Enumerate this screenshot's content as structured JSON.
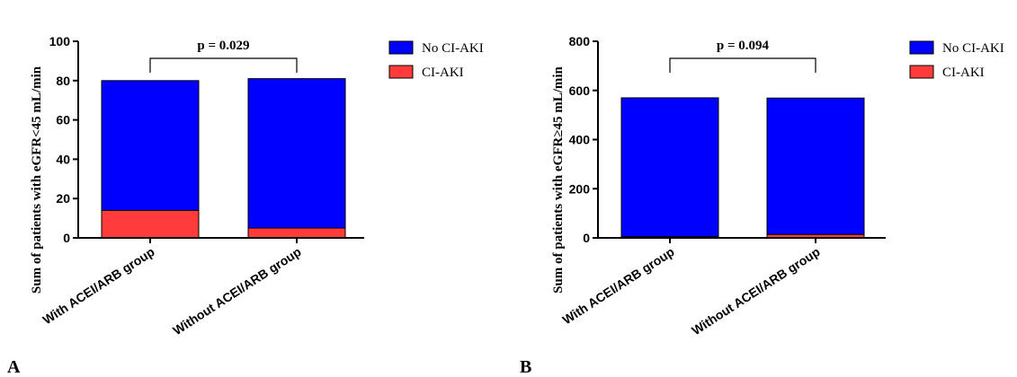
{
  "chart_data": [
    {
      "type": "bar",
      "stacked": true,
      "panel_letter": "A",
      "ylabel": "Sum of patients with eGFR<45 mL/min",
      "categories": [
        "With ACEI/ARB group",
        "Without ACEI/ARB group"
      ],
      "series": [
        {
          "name": "CI-AKI",
          "values": [
            14,
            5
          ],
          "color": "#ff3b3b"
        },
        {
          "name": "No CI-AKI",
          "values": [
            66,
            76
          ],
          "color": "#0000ff"
        }
      ],
      "ylim": [
        0,
        100
      ],
      "yticks": [
        "0",
        "20",
        "40",
        "60",
        "80",
        "100"
      ],
      "annotation": "p = 0.029",
      "legend": [
        "No CI-AKI",
        "CI-AKI"
      ],
      "legend_position": "right"
    },
    {
      "type": "bar",
      "stacked": true,
      "panel_letter": "B",
      "ylabel": "Sum of patients with eGFR≥45 mL/min",
      "categories": [
        "With ACEI/ARB group",
        "Without ACEI/ARB group"
      ],
      "series": [
        {
          "name": "CI-AKI",
          "values": [
            5,
            14
          ],
          "color": "#ff3b3b"
        },
        {
          "name": "No CI-AKI",
          "values": [
            565,
            555
          ],
          "color": "#0000ff"
        }
      ],
      "ylim": [
        0,
        800
      ],
      "yticks": [
        "0",
        "200",
        "400",
        "600",
        "800"
      ],
      "annotation": "p = 0.094",
      "legend": [
        "No CI-AKI",
        "CI-AKI"
      ],
      "legend_position": "right"
    }
  ]
}
